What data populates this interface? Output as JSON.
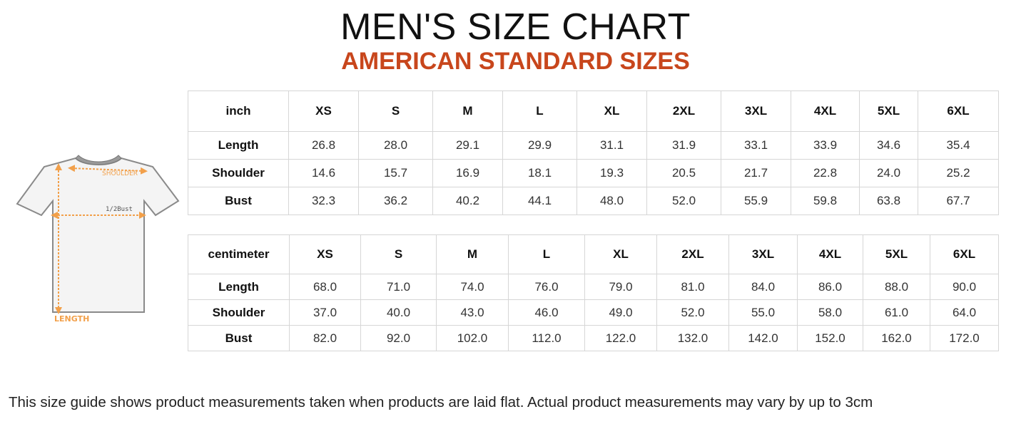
{
  "header": {
    "title": "MEN'S SIZE CHART",
    "subtitle": "AMERICAN STANDARD SIZES"
  },
  "diagram": {
    "shoulder_label": "SHOULDER",
    "bust_label": "1/2Bust",
    "length_label": "LENGTH"
  },
  "colors": {
    "accent": "#c8461c",
    "measure_lines": "#f2a04a",
    "grid": "#d6d6d6"
  },
  "inch_table": {
    "unit": "inch",
    "sizes": [
      "XS",
      "S",
      "M",
      "L",
      "XL",
      "2XL",
      "3XL",
      "4XL",
      "5XL",
      "6XL"
    ],
    "rows": [
      {
        "label": "Length",
        "values": [
          "26.8",
          "28.0",
          "29.1",
          "29.9",
          "31.1",
          "31.9",
          "33.1",
          "33.9",
          "34.6",
          "35.4"
        ]
      },
      {
        "label": "Shoulder",
        "values": [
          "14.6",
          "15.7",
          "16.9",
          "18.1",
          "19.3",
          "20.5",
          "21.7",
          "22.8",
          "24.0",
          "25.2"
        ]
      },
      {
        "label": "Bust",
        "values": [
          "32.3",
          "36.2",
          "40.2",
          "44.1",
          "48.0",
          "52.0",
          "55.9",
          "59.8",
          "63.8",
          "67.7"
        ]
      }
    ]
  },
  "cm_table": {
    "unit": "centimeter",
    "sizes": [
      "XS",
      "S",
      "M",
      "L",
      "XL",
      "2XL",
      "3XL",
      "4XL",
      "5XL",
      "6XL"
    ],
    "rows": [
      {
        "label": "Length",
        "values": [
          "68.0",
          "71.0",
          "74.0",
          "76.0",
          "79.0",
          "81.0",
          "84.0",
          "86.0",
          "88.0",
          "90.0"
        ]
      },
      {
        "label": "Shoulder",
        "values": [
          "37.0",
          "40.0",
          "43.0",
          "46.0",
          "49.0",
          "52.0",
          "55.0",
          "58.0",
          "61.0",
          "64.0"
        ]
      },
      {
        "label": "Bust",
        "values": [
          "82.0",
          "92.0",
          "102.0",
          "112.0",
          "122.0",
          "132.0",
          "142.0",
          "152.0",
          "162.0",
          "172.0"
        ]
      }
    ]
  },
  "footer": {
    "note": "This size guide shows product measurements taken when products are laid flat. Actual product measurements may vary by up to 3cm"
  }
}
